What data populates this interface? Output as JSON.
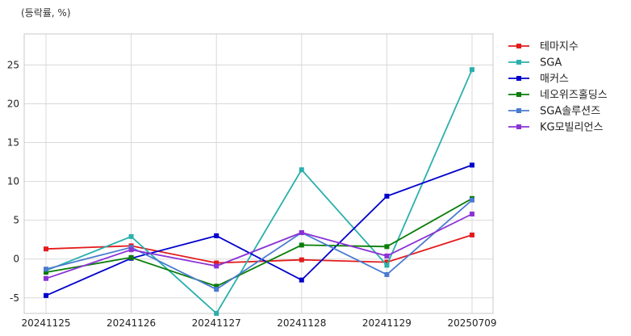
{
  "chart_data": {
    "type": "line",
    "unit_label": "(등락률, %)",
    "title": "",
    "xlabel": "",
    "ylabel": "",
    "categories": [
      "20241125",
      "20241126",
      "20241127",
      "20241128",
      "20241129",
      "20250709"
    ],
    "ylim": [
      -7,
      29
    ],
    "yticks": [
      -5,
      0,
      5,
      10,
      15,
      20,
      25
    ],
    "grid": true,
    "legend_position": "outside-right",
    "series": [
      {
        "name": "테마지수",
        "color": "#e31a1c",
        "values": [
          1.3,
          1.7,
          -0.5,
          -0.1,
          -0.4,
          3.1
        ]
      },
      {
        "name": "SGA",
        "color": "#2ab0ad",
        "values": [
          -1.5,
          2.9,
          -7.0,
          11.5,
          -0.8,
          24.4
        ]
      },
      {
        "name": "매커스",
        "color": "#0000cd",
        "values": [
          -4.7,
          0.1,
          3.0,
          -2.7,
          8.1,
          12.1
        ]
      },
      {
        "name": "네오위즈홀딩스",
        "color": "#0a7d0a",
        "values": [
          -1.7,
          0.2,
          -3.5,
          1.8,
          1.6,
          7.8
        ]
      },
      {
        "name": "SGA솔루션즈",
        "color": "#4a7bd0",
        "values": [
          -1.3,
          1.5,
          -3.9,
          3.4,
          -2.0,
          7.6
        ]
      },
      {
        "name": "KG모빌리언스",
        "color": "#8b32d6",
        "values": [
          -2.5,
          1.2,
          -0.9,
          3.4,
          0.4,
          5.8
        ]
      }
    ]
  }
}
